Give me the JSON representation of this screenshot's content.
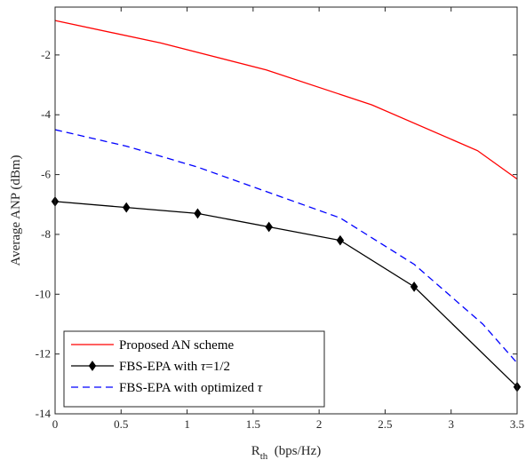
{
  "chart_data": {
    "type": "line",
    "xlabel": {
      "main": "R",
      "sub": "th",
      "rest": "  (bps/Hz)"
    },
    "ylabel": "Average ANP (dBm)",
    "xlim": [
      0,
      3.5
    ],
    "ylim": [
      -14,
      -0.4
    ],
    "xticks": [
      0,
      0.5,
      1,
      1.5,
      2,
      2.5,
      3,
      3.5
    ],
    "xtick_labels": [
      "0",
      "0.5",
      "1",
      "1.5",
      "2",
      "2.5",
      "3",
      "3.5"
    ],
    "yticks": [
      -2,
      -4,
      -6,
      -8,
      -10,
      -12,
      -14
    ],
    "ytick_labels": [
      "-2",
      "-4",
      "-6",
      "-8",
      "-10",
      "-12",
      "-14"
    ],
    "grid": false,
    "legend_position": "bottom-left",
    "series": [
      {
        "name": "Proposed AN scheme",
        "color": "#ff0000",
        "dash": "solid",
        "marker": "none",
        "x": [
          0,
          0.8,
          1.6,
          2.4,
          3.2,
          3.5
        ],
        "y": [
          -0.85,
          -1.6,
          -2.5,
          -3.67,
          -5.2,
          -6.15
        ]
      },
      {
        "name": "FBS-EPA with τ=1/2",
        "legend_parts": [
          "FBS-EPA with ",
          "τ",
          "=1/2"
        ],
        "color": "#000000",
        "dash": "solid",
        "marker": "diamond",
        "x": [
          0,
          0.54,
          1.08,
          1.62,
          2.16,
          2.72,
          3.5
        ],
        "y": [
          -6.9,
          -7.1,
          -7.3,
          -7.75,
          -8.2,
          -9.75,
          -13.1
        ]
      },
      {
        "name": "FBS-EPA with optimized τ",
        "legend_parts": [
          "FBS-EPA with optimized ",
          "τ",
          ""
        ],
        "color": "#0000ff",
        "dash": "dashed",
        "marker": "none",
        "x": [
          0,
          0.54,
          1.08,
          1.62,
          2.16,
          2.72,
          3.24,
          3.5
        ],
        "y": [
          -4.5,
          -5.05,
          -5.75,
          -6.6,
          -7.45,
          -9.0,
          -11.0,
          -12.3
        ]
      }
    ]
  }
}
